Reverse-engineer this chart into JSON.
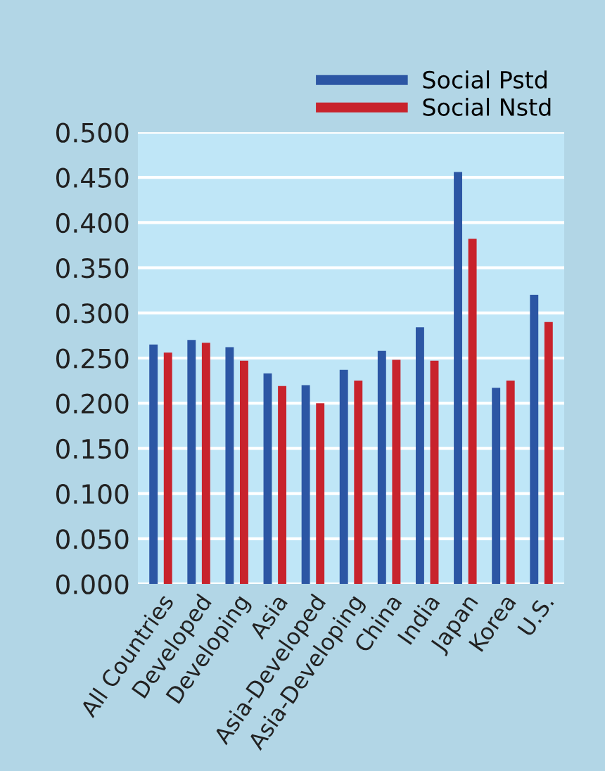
{
  "chart_data": {
    "type": "bar",
    "categories": [
      "All Countries",
      "Developed",
      "Developing",
      "Asia",
      "Asia-Developed",
      "Asia-Developing",
      "China",
      "India",
      "Japan",
      "Korea",
      "U.S."
    ],
    "series": [
      {
        "name": "Social Pstd",
        "color": "#2c56a4",
        "values": [
          0.265,
          0.27,
          0.262,
          0.233,
          0.22,
          0.237,
          0.258,
          0.284,
          0.456,
          0.217,
          0.32
        ]
      },
      {
        "name": "Social Nstd",
        "color": "#c8232c",
        "values": [
          0.256,
          0.267,
          0.247,
          0.219,
          0.2,
          0.225,
          0.248,
          0.247,
          0.382,
          0.225,
          0.29
        ]
      }
    ],
    "ylim": [
      0,
      0.5
    ],
    "yticks": [
      {
        "value": 0,
        "label": "0.000"
      },
      {
        "value": 0.05,
        "label": "0.050"
      },
      {
        "value": 0.1,
        "label": "0.100"
      },
      {
        "value": 0.15,
        "label": "0.150"
      },
      {
        "value": 0.2,
        "label": "0.200"
      },
      {
        "value": 0.25,
        "label": "0.250"
      },
      {
        "value": 0.3,
        "label": "0.300"
      },
      {
        "value": 0.35,
        "label": "0.350"
      },
      {
        "value": 0.4,
        "label": "0.400"
      },
      {
        "value": 0.45,
        "label": "0.450"
      },
      {
        "value": 0.5,
        "label": "0.500"
      }
    ],
    "grid": "y",
    "legend": "top right"
  }
}
